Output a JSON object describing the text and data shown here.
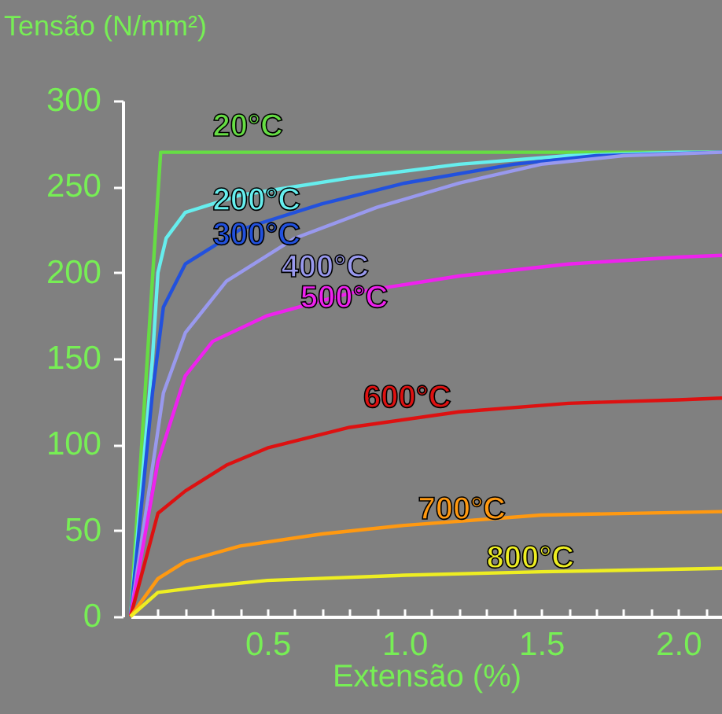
{
  "chart_data": {
    "type": "line",
    "xlabel": "Extensão (%)",
    "ylabel": "Tensão (N/mm²)",
    "xlim": [
      0,
      2.16
    ],
    "ylim": [
      0,
      300
    ],
    "xticks": [
      {
        "value": 0.1,
        "label": null
      },
      {
        "value": 0.2,
        "label": null
      },
      {
        "value": 0.3,
        "label": null
      },
      {
        "value": 0.4,
        "label": null
      },
      0.5,
      {
        "value": 0.6,
        "label": null
      },
      {
        "value": 0.7,
        "label": null
      },
      {
        "value": 0.8,
        "label": null
      },
      {
        "value": 0.9,
        "label": null
      },
      {
        "value": 1,
        "label": "1.0"
      },
      {
        "value": 1.1,
        "label": null
      },
      {
        "value": 1.2,
        "label": null
      },
      {
        "value": 1.3,
        "label": null
      },
      {
        "value": 1.4,
        "label": null
      },
      1.5,
      {
        "value": 1.6,
        "label": null
      },
      {
        "value": 1.7,
        "label": null
      },
      {
        "value": 1.8,
        "label": null
      },
      {
        "value": 1.9,
        "label": null
      },
      {
        "value": 2,
        "label": "2.0"
      },
      {
        "value": 2.1,
        "label": null
      }
    ],
    "yticks": [
      0,
      50,
      100,
      150,
      200,
      250,
      300
    ],
    "grid": false,
    "legend": false,
    "marker": "none",
    "line_style": "solid",
    "series": [
      {
        "name": "20°C",
        "color": "#66dd44",
        "x": [
          0,
          0.11,
          2.16
        ],
        "values": [
          0,
          270,
          270
        ]
      },
      {
        "name": "200°C",
        "color": "#66eeee",
        "x": [
          0,
          0.08,
          0.1,
          0.13,
          0.2,
          0.4,
          0.8,
          1.2,
          1.6,
          2.0,
          2.16
        ],
        "values": [
          0,
          150,
          200,
          220,
          235,
          245,
          255,
          263,
          268,
          270,
          270
        ]
      },
      {
        "name": "300°C",
        "color": "#2251dd",
        "x": [
          0,
          0.08,
          0.12,
          0.2,
          0.4,
          0.7,
          1.0,
          1.4,
          1.7,
          2.16
        ],
        "values": [
          0,
          130,
          180,
          205,
          225,
          240,
          252,
          263,
          268,
          270
        ]
      },
      {
        "name": "400°C",
        "color": "#9999ee",
        "x": [
          0,
          0.12,
          0.2,
          0.35,
          0.6,
          0.9,
          1.2,
          1.5,
          1.8,
          2.16
        ],
        "values": [
          0,
          130,
          165,
          195,
          220,
          238,
          252,
          263,
          268,
          270
        ]
      },
      {
        "name": "500°C",
        "color": "#ee22ee",
        "x": [
          0,
          0.1,
          0.2,
          0.3,
          0.5,
          0.8,
          1.2,
          1.6,
          2.0,
          2.16
        ],
        "values": [
          0,
          90,
          140,
          160,
          175,
          188,
          198,
          205,
          209,
          210
        ]
      },
      {
        "name": "600°C",
        "color": "#dd1111",
        "x": [
          0,
          0.05,
          0.1,
          0.2,
          0.35,
          0.5,
          0.8,
          1.2,
          1.6,
          2.0,
          2.16
        ],
        "values": [
          0,
          30,
          60,
          73,
          88,
          98,
          110,
          119,
          124,
          126,
          127
        ]
      },
      {
        "name": "700°C",
        "color": "#ff9911",
        "x": [
          0,
          0.1,
          0.2,
          0.4,
          0.7,
          1.0,
          1.5,
          2.16
        ],
        "values": [
          0,
          22,
          32,
          41,
          48,
          53,
          59,
          61
        ]
      },
      {
        "name": "800°C",
        "color": "#eeee22",
        "x": [
          0,
          0.1,
          0.25,
          0.5,
          1.0,
          1.5,
          2.16
        ],
        "values": [
          0,
          14,
          17,
          21,
          24,
          26,
          28
        ]
      }
    ]
  }
}
